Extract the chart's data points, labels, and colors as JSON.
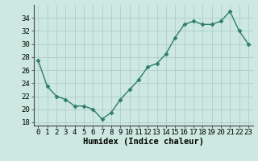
{
  "x": [
    0,
    1,
    2,
    3,
    4,
    5,
    6,
    7,
    8,
    9,
    10,
    11,
    12,
    13,
    14,
    15,
    16,
    17,
    18,
    19,
    20,
    21,
    22,
    23
  ],
  "y": [
    27.5,
    23.5,
    22.0,
    21.5,
    20.5,
    20.5,
    20.0,
    18.5,
    19.5,
    21.5,
    23.0,
    24.5,
    26.5,
    27.0,
    28.5,
    31.0,
    33.0,
    33.5,
    33.0,
    33.0,
    33.5,
    35.0,
    32.0,
    30.0
  ],
  "line_color": "#2e7d6e",
  "marker": "D",
  "marker_size": 2.5,
  "bg_color": "#cce8e0",
  "grid_color": "#b0cccc",
  "xlabel": "Humidex (Indice chaleur)",
  "xlim": [
    -0.5,
    23.5
  ],
  "ylim": [
    17.5,
    36.0
  ],
  "yticks": [
    18,
    20,
    22,
    24,
    26,
    28,
    30,
    32,
    34
  ],
  "xticks": [
    0,
    1,
    2,
    3,
    4,
    5,
    6,
    7,
    8,
    9,
    10,
    11,
    12,
    13,
    14,
    15,
    16,
    17,
    18,
    19,
    20,
    21,
    22,
    23
  ],
  "xlabel_fontsize": 7.5,
  "tick_fontsize": 6.5
}
